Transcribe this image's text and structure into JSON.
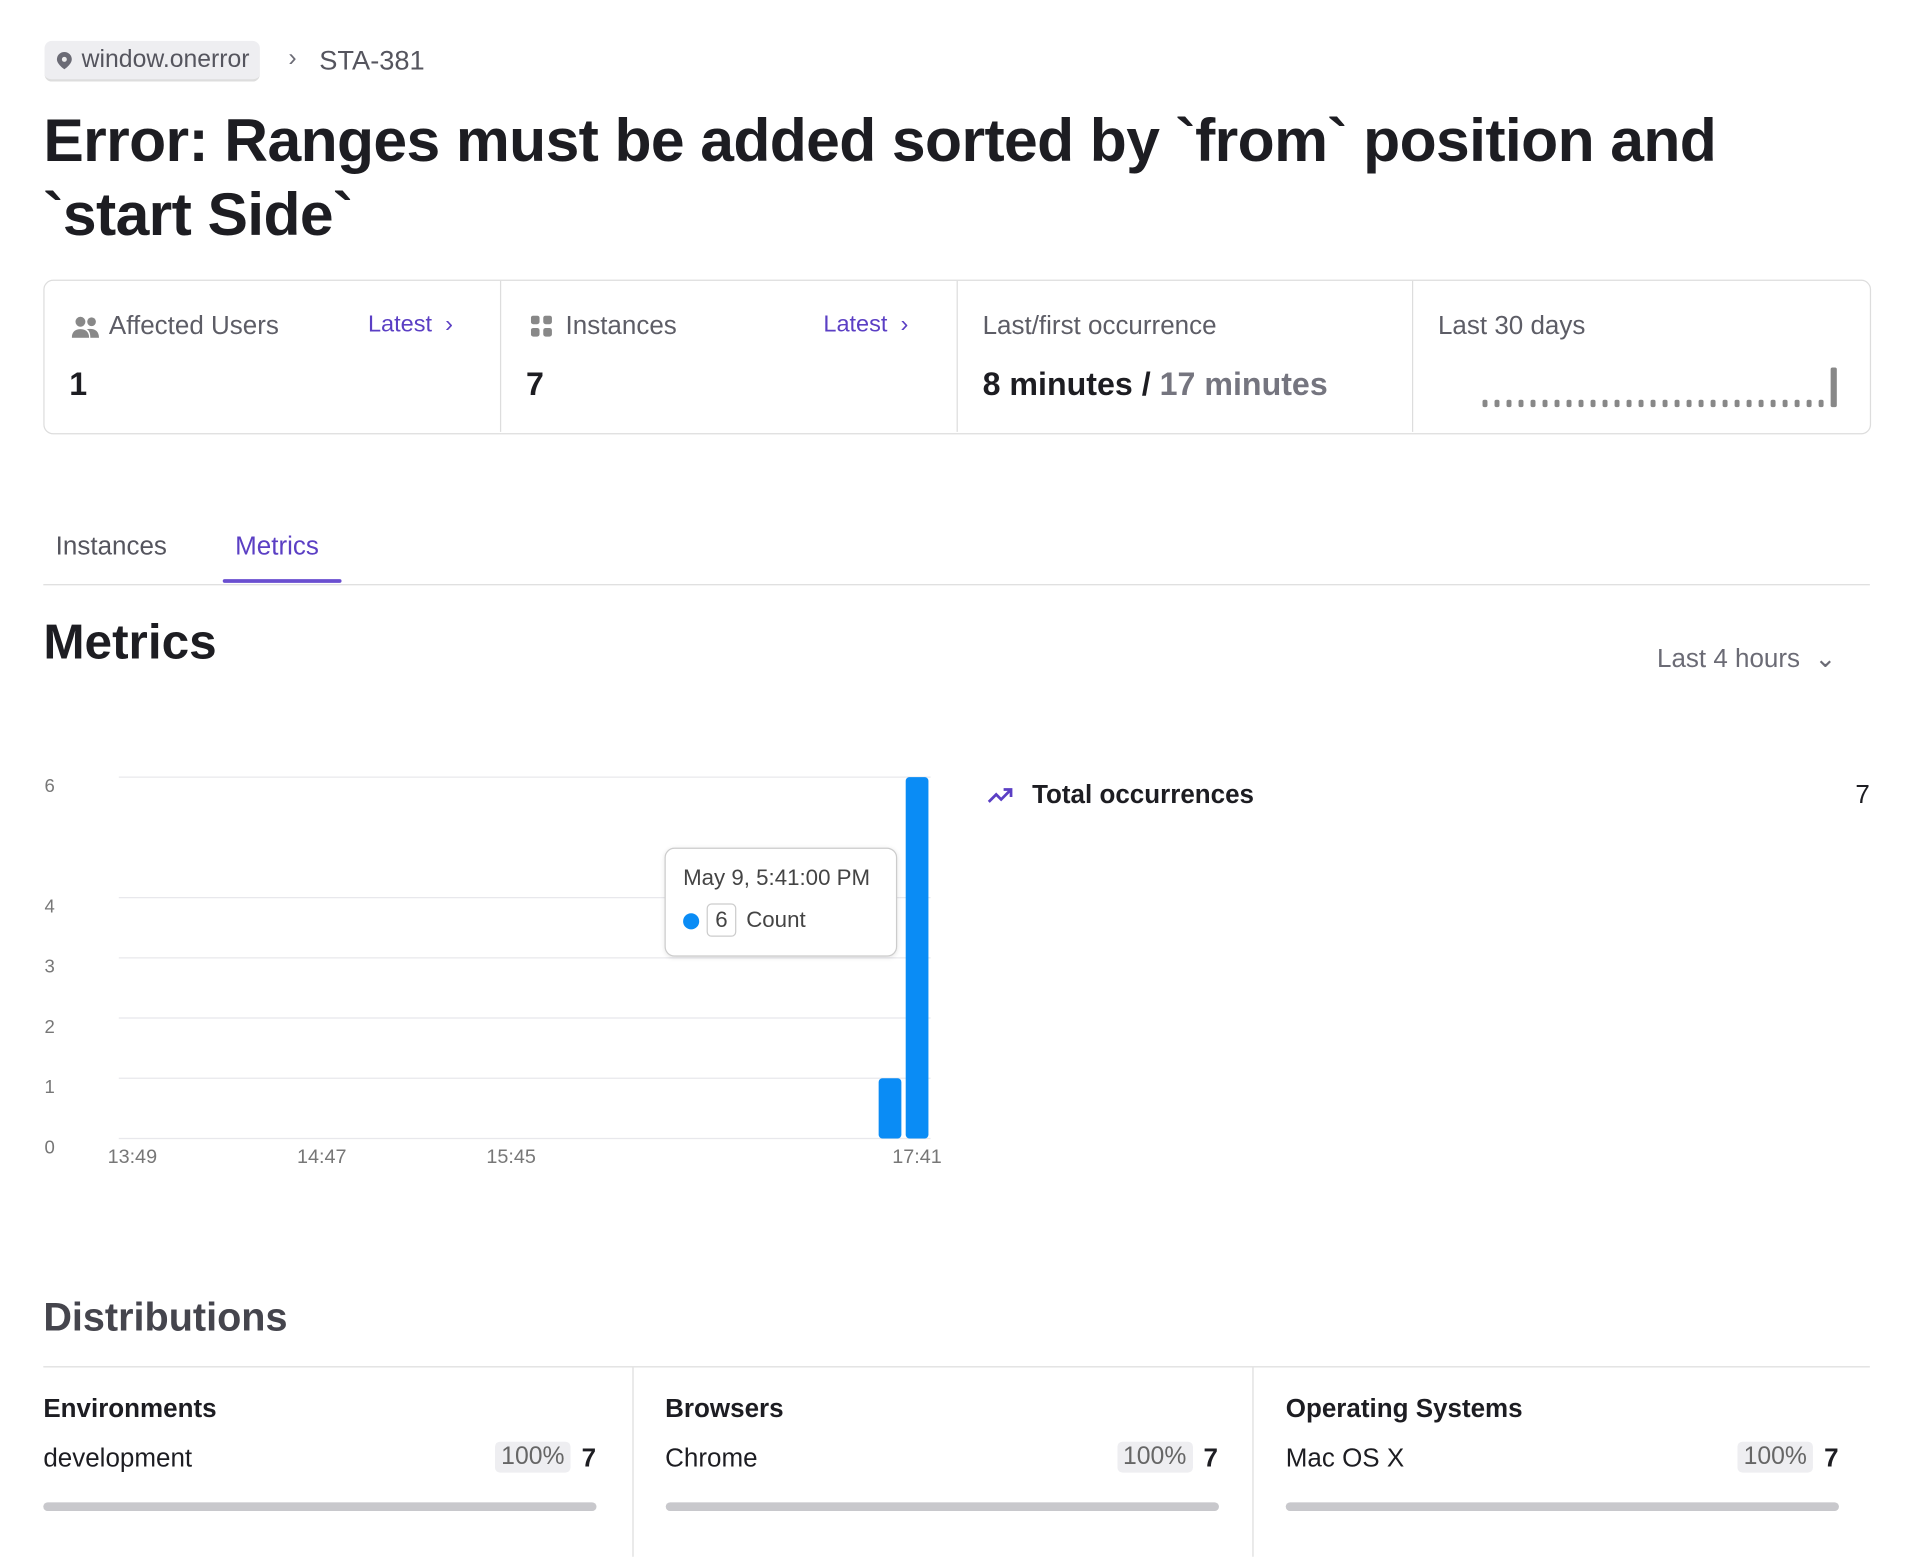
{
  "breadcrumb": {
    "source": "window.onerror",
    "id": "STA-381"
  },
  "title": "Error: Ranges must be added sorted by `from` position and `start Side`",
  "stats": [
    {
      "label": "Affected Users",
      "link": "Latest",
      "value": 1
    },
    {
      "label": "Instances",
      "link": "Latest",
      "value": 7
    },
    {
      "label": "Last/first occurrence",
      "last": "8 minutes",
      "separator": "/",
      "first": "17 minutes"
    },
    {
      "label": "Last 30 days",
      "values": [
        0,
        0,
        0,
        0,
        0,
        0,
        0,
        0,
        0,
        0,
        0,
        0,
        0,
        0,
        0,
        0,
        0,
        0,
        0,
        0,
        0,
        0,
        0,
        0,
        0,
        0,
        0,
        0,
        0,
        7
      ]
    }
  ],
  "tabs": [
    "Instances",
    "Metrics"
  ],
  "active_tab": 1,
  "metrics": {
    "heading": "Metrics",
    "range": "Last 4 hours",
    "total_label": "Total occurrences",
    "total": 7
  },
  "chart_data": {
    "type": "bar",
    "categories": [
      "13:49",
      null,
      null,
      null,
      null,
      null,
      null,
      "14:47",
      null,
      null,
      null,
      null,
      null,
      null,
      "15:45",
      null,
      null,
      null,
      null,
      null,
      null,
      null,
      null,
      null,
      null,
      null,
      null,
      null,
      null,
      "17:41"
    ],
    "values": [
      0,
      0,
      0,
      0,
      0,
      0,
      0,
      0,
      0,
      0,
      0,
      0,
      0,
      0,
      0,
      0,
      0,
      0,
      0,
      0,
      0,
      0,
      0,
      0,
      0,
      0,
      0,
      0,
      1,
      6
    ],
    "color": "#0a8cf5",
    "ylim": [
      0,
      6
    ],
    "yticks": [
      0,
      1,
      2,
      3,
      4,
      6
    ],
    "grid": true,
    "tooltip": {
      "date": "May 9, 5:41:00 PM",
      "value": 6,
      "label": "Count"
    }
  },
  "distributions": {
    "heading": "Distributions",
    "groups": [
      {
        "title": "Environments",
        "name": "development",
        "share": 100,
        "share_label": "100%",
        "count": 7
      },
      {
        "title": "Browsers",
        "name": "Chrome",
        "share": 100,
        "share_label": "100%",
        "count": 7
      },
      {
        "title": "Operating Systems",
        "name": "Mac OS X",
        "share": 100,
        "share_label": "100%",
        "count": 7
      }
    ]
  }
}
